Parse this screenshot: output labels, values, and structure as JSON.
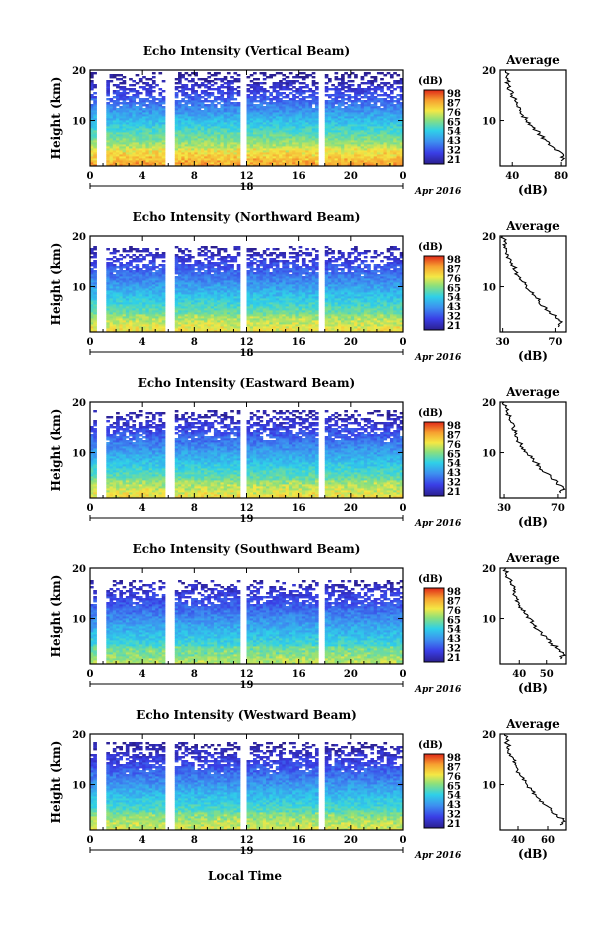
{
  "figure": {
    "xlabel": "Local Time"
  },
  "panels": [
    {
      "title": "Echo Intensity (Vertical Beam)",
      "ylabel": "Height (km)",
      "y_ticks": [
        "20",
        "10"
      ],
      "x_ticks": [
        "0",
        "4",
        "8",
        "12",
        "16",
        "20",
        "0"
      ],
      "day": "18",
      "date_label": "Apr 2016",
      "colorbar": {
        "label": "(dB)",
        "ticks": [
          "98",
          "87",
          "76",
          "65",
          "54",
          "43",
          "32",
          "21"
        ]
      },
      "profile": {
        "title": "Average",
        "xlabel": "(dB)",
        "x_ticks": [
          "40",
          "80"
        ],
        "xlim": [
          30,
          84
        ],
        "y_ticks": [
          "20",
          "10"
        ]
      },
      "gaps_hours": [
        [
          0.7,
          1.1
        ],
        [
          5.9,
          6.3
        ],
        [
          11.5,
          11.9
        ],
        [
          17.6,
          18.0
        ]
      ]
    },
    {
      "title": "Echo Intensity (Northward Beam)",
      "ylabel": "Height (km)",
      "y_ticks": [
        "20",
        "10"
      ],
      "x_ticks": [
        "0",
        "4",
        "8",
        "12",
        "16",
        "20",
        "0"
      ],
      "day": "18",
      "date_label": "Apr 2016",
      "colorbar": {
        "label": "(dB)",
        "ticks": [
          "98",
          "87",
          "76",
          "65",
          "54",
          "43",
          "32",
          "21"
        ]
      },
      "profile": {
        "title": "Average",
        "xlabel": "(dB)",
        "x_ticks": [
          "30",
          "70"
        ],
        "xlim": [
          28,
          78
        ],
        "y_ticks": [
          "20",
          "10"
        ]
      },
      "gaps_hours": [
        [
          0.7,
          1.1
        ],
        [
          5.9,
          6.3
        ],
        [
          11.5,
          11.9
        ],
        [
          17.6,
          18.0
        ]
      ]
    },
    {
      "title": "Echo Intensity (Eastward Beam)",
      "ylabel": "Height (km)",
      "y_ticks": [
        "20",
        "10"
      ],
      "x_ticks": [
        "0",
        "4",
        "8",
        "12",
        "16",
        "20",
        "0"
      ],
      "day": "19",
      "date_label": "Apr 2016",
      "colorbar": {
        "label": "(dB)",
        "ticks": [
          "98",
          "87",
          "76",
          "65",
          "54",
          "43",
          "32",
          "21"
        ]
      },
      "profile": {
        "title": "Average",
        "xlabel": "(dB)",
        "x_ticks": [
          "30",
          "70"
        ],
        "xlim": [
          27,
          76
        ],
        "y_ticks": [
          "20",
          "10"
        ]
      },
      "gaps_hours": [
        [
          0.7,
          1.1
        ],
        [
          5.9,
          6.3
        ],
        [
          11.5,
          11.9
        ],
        [
          17.6,
          18.0
        ]
      ]
    },
    {
      "title": "Echo Intensity (Southward Beam)",
      "ylabel": "Height (km)",
      "y_ticks": [
        "20",
        "10"
      ],
      "x_ticks": [
        "0",
        "4",
        "8",
        "12",
        "16",
        "20",
        "0"
      ],
      "day": "19",
      "date_label": "Apr 2016",
      "colorbar": {
        "label": "(dB)",
        "ticks": [
          "98",
          "87",
          "76",
          "65",
          "54",
          "43",
          "32",
          "21"
        ]
      },
      "profile": {
        "title": "Average",
        "xlabel": "(dB)",
        "x_ticks": [
          "40",
          "50"
        ],
        "xlim": [
          33,
          57
        ],
        "y_ticks": [
          "20",
          "10"
        ]
      },
      "gaps_hours": [
        [
          0.7,
          1.1
        ],
        [
          5.9,
          6.3
        ],
        [
          11.5,
          11.9
        ],
        [
          17.6,
          18.0
        ]
      ]
    },
    {
      "title": "Echo Intensity (Westward Beam)",
      "ylabel": "Height (km)",
      "y_ticks": [
        "20",
        "10"
      ],
      "x_ticks": [
        "0",
        "4",
        "8",
        "12",
        "16",
        "20",
        "0"
      ],
      "day": "19",
      "date_label": "Apr 2016",
      "colorbar": {
        "label": "(dB)",
        "ticks": [
          "98",
          "87",
          "76",
          "65",
          "54",
          "43",
          "32",
          "21"
        ]
      },
      "profile": {
        "title": "Average",
        "xlabel": "(dB)",
        "x_ticks": [
          "40",
          "60"
        ],
        "xlim": [
          28,
          72
        ],
        "y_ticks": [
          "20",
          "10"
        ]
      },
      "gaps_hours": [
        [
          0.7,
          1.1
        ],
        [
          5.9,
          6.3
        ],
        [
          11.5,
          11.9
        ],
        [
          17.6,
          18.0
        ]
      ]
    }
  ],
  "chart_data": [
    {
      "type": "heatmap",
      "title": "Echo Intensity (Vertical Beam)",
      "ylabel": "Height (km)",
      "xlim_hours": [
        0,
        24
      ],
      "ylim_km": [
        1,
        20
      ],
      "colorscale": {
        "label": "(dB)",
        "range": [
          21,
          98
        ]
      },
      "profile": {
        "title": "Average",
        "xlabel": "(dB)",
        "height_km": [
          2,
          3,
          4,
          5,
          6,
          7,
          8,
          9,
          10,
          11,
          12,
          13,
          14,
          15,
          16,
          17,
          18,
          19,
          20
        ],
        "db": [
          80,
          82,
          78,
          72,
          68,
          64,
          60,
          56,
          52,
          49,
          46,
          44,
          42,
          40,
          38,
          37,
          36,
          36,
          35
        ]
      }
    },
    {
      "type": "heatmap",
      "title": "Echo Intensity (Northward Beam)",
      "ylabel": "Height (km)",
      "xlim_hours": [
        0,
        24
      ],
      "ylim_km": [
        1,
        20
      ],
      "colorscale": {
        "label": "(dB)",
        "range": [
          21,
          98
        ]
      },
      "profile": {
        "title": "Average",
        "xlabel": "(dB)",
        "height_km": [
          2,
          3,
          4,
          5,
          6,
          7,
          8,
          9,
          10,
          11,
          12,
          13,
          14,
          15,
          16,
          17,
          18,
          19,
          20
        ],
        "db": [
          72,
          75,
          70,
          66,
          62,
          58,
          55,
          51,
          48,
          45,
          42,
          40,
          38,
          36,
          34,
          33,
          32,
          31,
          30
        ]
      }
    },
    {
      "type": "heatmap",
      "title": "Echo Intensity (Eastward Beam)",
      "ylabel": "Height (km)",
      "xlim_hours": [
        0,
        24
      ],
      "ylim_km": [
        1,
        20
      ],
      "colorscale": {
        "label": "(dB)",
        "range": [
          21,
          98
        ]
      },
      "profile": {
        "title": "Average",
        "xlabel": "(dB)",
        "height_km": [
          2,
          3,
          4,
          5,
          6,
          7,
          8,
          9,
          10,
          11,
          12,
          13,
          14,
          15,
          16,
          17,
          18,
          19,
          20
        ],
        "db": [
          72,
          74,
          69,
          65,
          61,
          57,
          54,
          50,
          47,
          44,
          41,
          40,
          38,
          37,
          35,
          34,
          32,
          31,
          30
        ]
      }
    },
    {
      "type": "heatmap",
      "title": "Echo Intensity (Southward Beam)",
      "ylabel": "Height (km)",
      "xlim_hours": [
        0,
        24
      ],
      "ylim_km": [
        1,
        20
      ],
      "colorscale": {
        "label": "(dB)",
        "range": [
          21,
          98
        ]
      },
      "profile": {
        "title": "Average",
        "xlabel": "(dB)",
        "height_km": [
          2,
          3,
          4,
          5,
          6,
          7,
          8,
          9,
          10,
          11,
          12,
          13,
          14,
          15,
          16,
          17,
          18,
          19,
          20
        ],
        "db": [
          55,
          56,
          54,
          52,
          50,
          48,
          46,
          45,
          44,
          42,
          41,
          40,
          39,
          38,
          38,
          37,
          36,
          35,
          35
        ]
      }
    },
    {
      "type": "heatmap",
      "title": "Echo Intensity (Westward Beam)",
      "ylabel": "Height (km)",
      "xlim_hours": [
        0,
        24
      ],
      "ylim_km": [
        1,
        20
      ],
      "colorscale": {
        "label": "(dB)",
        "range": [
          21,
          98
        ]
      },
      "profile": {
        "title": "Average",
        "xlabel": "(dB)",
        "height_km": [
          2,
          3,
          4,
          5,
          6,
          7,
          8,
          9,
          10,
          11,
          12,
          13,
          14,
          15,
          16,
          17,
          18,
          19,
          20
        ],
        "db": [
          68,
          70,
          66,
          62,
          58,
          55,
          52,
          49,
          46,
          43,
          41,
          40,
          38,
          37,
          35,
          34,
          33,
          32,
          31
        ]
      }
    }
  ]
}
